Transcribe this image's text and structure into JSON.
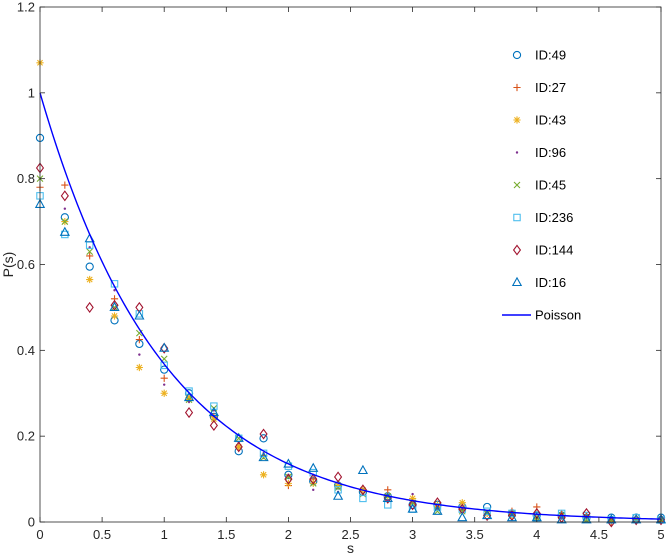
{
  "chart_data": {
    "type": "scatter",
    "xlabel": "s",
    "ylabel": "P(s)",
    "xlim": [
      0,
      5
    ],
    "ylim": [
      0,
      1.2
    ],
    "xticks": [
      0,
      0.5,
      1,
      1.5,
      2,
      2.5,
      3,
      3.5,
      4,
      4.5,
      5
    ],
    "yticks": [
      0,
      0.2,
      0.4,
      0.6,
      0.8,
      1,
      1.2
    ],
    "xtick_labels": [
      "0",
      "0.5",
      "1",
      "1.5",
      "2",
      "2.5",
      "3",
      "3.5",
      "4",
      "4.5",
      "5"
    ],
    "ytick_labels": [
      "0",
      "0.2",
      "0.4",
      "0.6",
      "0.8",
      "1",
      "1.2"
    ],
    "grid": false,
    "legend_position": "top-right",
    "series": [
      {
        "name": "ID:49",
        "marker": "circle",
        "color": "#0072BD",
        "x": [
          0,
          0.2,
          0.4,
          0.6,
          0.8,
          1.0,
          1.2,
          1.4,
          1.6,
          1.8,
          2.0,
          2.2,
          2.4,
          2.6,
          2.8,
          3.0,
          3.2,
          3.4,
          3.6,
          3.8,
          4.0,
          4.2,
          4.4,
          4.6,
          4.8,
          5.0
        ],
        "y": [
          0.895,
          0.71,
          0.595,
          0.47,
          0.415,
          0.355,
          0.3,
          0.245,
          0.165,
          0.195,
          0.11,
          0.095,
          0.085,
          0.07,
          0.06,
          0.04,
          0.04,
          0.035,
          0.035,
          0.02,
          0.015,
          0.015,
          0.01,
          0.01,
          0.01,
          0.01
        ]
      },
      {
        "name": "ID:27",
        "marker": "plus",
        "color": "#D95319",
        "x": [
          0,
          0.2,
          0.4,
          0.6,
          0.8,
          1.0,
          1.2,
          1.4,
          1.6,
          1.8,
          2.0,
          2.2,
          2.4,
          2.6,
          2.8,
          3.0,
          3.2,
          3.4,
          3.6,
          3.8,
          4.0,
          4.2,
          4.4,
          4.6,
          4.8,
          5.0
        ],
        "y": [
          0.78,
          0.785,
          0.62,
          0.52,
          0.425,
          0.335,
          0.285,
          0.245,
          0.175,
          0.155,
          0.085,
          0.1,
          0.085,
          0.075,
          0.075,
          0.05,
          0.035,
          0.03,
          0.02,
          0.025,
          0.035,
          0.02,
          0.015,
          0.0,
          0.005,
          0.005
        ]
      },
      {
        "name": "ID:43",
        "marker": "asterisk",
        "color": "#EDB120",
        "x": [
          0,
          0.2,
          0.4,
          0.6,
          0.8,
          1.0,
          1.2,
          1.4,
          1.6,
          1.8,
          2.0,
          2.2,
          2.4,
          2.6,
          2.8,
          3.0,
          3.2,
          3.4,
          3.6,
          3.8,
          4.0,
          4.2,
          4.4,
          4.6,
          4.8,
          5.0
        ],
        "y": [
          1.07,
          0.7,
          0.565,
          0.48,
          0.36,
          0.3,
          0.29,
          0.24,
          0.175,
          0.11,
          0.09,
          0.09,
          0.085,
          0.075,
          0.06,
          0.055,
          0.04,
          0.045,
          0.02,
          0.015,
          0.01,
          0.015,
          0.01,
          0.005,
          0.005,
          0.005
        ]
      },
      {
        "name": "ID:96",
        "marker": "dot",
        "color": "#7E2F8E",
        "x": [
          0,
          0.2,
          0.4,
          0.6,
          0.8,
          1.0,
          1.2,
          1.4,
          1.6,
          1.8,
          2.0,
          2.2,
          2.4,
          2.6,
          2.8,
          3.0,
          3.2,
          3.4,
          3.6,
          3.8,
          4.0,
          4.2,
          4.4,
          4.6,
          4.8,
          5.0
        ],
        "y": [
          0.8,
          0.73,
          0.64,
          0.54,
          0.39,
          0.32,
          0.28,
          0.26,
          0.185,
          0.16,
          0.11,
          0.075,
          0.07,
          0.065,
          0.05,
          0.065,
          0.03,
          0.03,
          0.02,
          0.015,
          0.01,
          0.01,
          0.01,
          0.005,
          0.005,
          0.005
        ]
      },
      {
        "name": "ID:45",
        "marker": "x",
        "color": "#77AC30",
        "x": [
          0,
          0.2,
          0.4,
          0.6,
          0.8,
          1.0,
          1.2,
          1.4,
          1.6,
          1.8,
          2.0,
          2.2,
          2.4,
          2.6,
          2.8,
          3.0,
          3.2,
          3.4,
          3.6,
          3.8,
          4.0,
          4.2,
          4.4,
          4.6,
          4.8,
          5.0
        ],
        "y": [
          0.8,
          0.7,
          0.63,
          0.5,
          0.44,
          0.38,
          0.285,
          0.265,
          0.195,
          0.15,
          0.105,
          0.09,
          0.08,
          0.065,
          0.06,
          0.045,
          0.025,
          0.025,
          0.02,
          0.02,
          0.01,
          0.015,
          0.005,
          0.005,
          0.005,
          0.005
        ]
      },
      {
        "name": "ID:236",
        "marker": "square",
        "color": "#4DBEEE",
        "x": [
          0,
          0.2,
          0.4,
          0.6,
          0.8,
          1.0,
          1.2,
          1.4,
          1.6,
          1.8,
          2.0,
          2.2,
          2.4,
          2.6,
          2.8,
          3.0,
          3.2,
          3.4,
          3.6,
          3.8,
          4.0,
          4.2,
          4.4,
          4.6,
          4.8,
          5.0
        ],
        "y": [
          0.76,
          0.67,
          0.645,
          0.555,
          0.485,
          0.365,
          0.305,
          0.27,
          0.195,
          0.16,
          0.13,
          0.115,
          0.075,
          0.055,
          0.04,
          0.03,
          0.035,
          0.03,
          0.025,
          0.02,
          0.01,
          0.02,
          0.015,
          0.005,
          0.01,
          0.005
        ]
      },
      {
        "name": "ID:144",
        "marker": "diamond",
        "color": "#A2142F",
        "x": [
          0,
          0.2,
          0.4,
          0.6,
          0.8,
          1.0,
          1.2,
          1.4,
          1.6,
          1.8,
          2.0,
          2.2,
          2.4,
          2.6,
          2.8,
          3.0,
          3.2,
          3.4,
          3.6,
          3.8,
          4.0,
          4.2,
          4.4,
          4.6,
          4.8,
          5.0
        ],
        "y": [
          0.825,
          0.76,
          0.5,
          0.505,
          0.5,
          0.405,
          0.255,
          0.225,
          0.175,
          0.205,
          0.1,
          0.1,
          0.105,
          0.075,
          0.055,
          0.04,
          0.045,
          0.03,
          0.015,
          0.015,
          0.02,
          0.01,
          0.02,
          0.0,
          0.005,
          0.005
        ]
      },
      {
        "name": "ID:16",
        "marker": "triangle",
        "color": "#0072BD",
        "x": [
          0,
          0.2,
          0.4,
          0.6,
          0.8,
          1.0,
          1.2,
          1.4,
          1.6,
          1.8,
          2.0,
          2.2,
          2.4,
          2.6,
          2.8,
          3.0,
          3.2,
          3.4,
          3.6,
          3.8,
          4.0,
          4.2,
          4.4,
          4.6,
          4.8,
          5.0
        ],
        "y": [
          0.74,
          0.675,
          0.66,
          0.5,
          0.48,
          0.405,
          0.29,
          0.255,
          0.195,
          0.15,
          0.135,
          0.125,
          0.06,
          0.12,
          0.055,
          0.03,
          0.025,
          0.01,
          0.015,
          0.01,
          0.01,
          0.005,
          0.005,
          0.005,
          0.005,
          0.005
        ]
      }
    ],
    "curve": {
      "name": "Poisson",
      "color": "#0000FF",
      "function": "exp(-s)"
    }
  }
}
